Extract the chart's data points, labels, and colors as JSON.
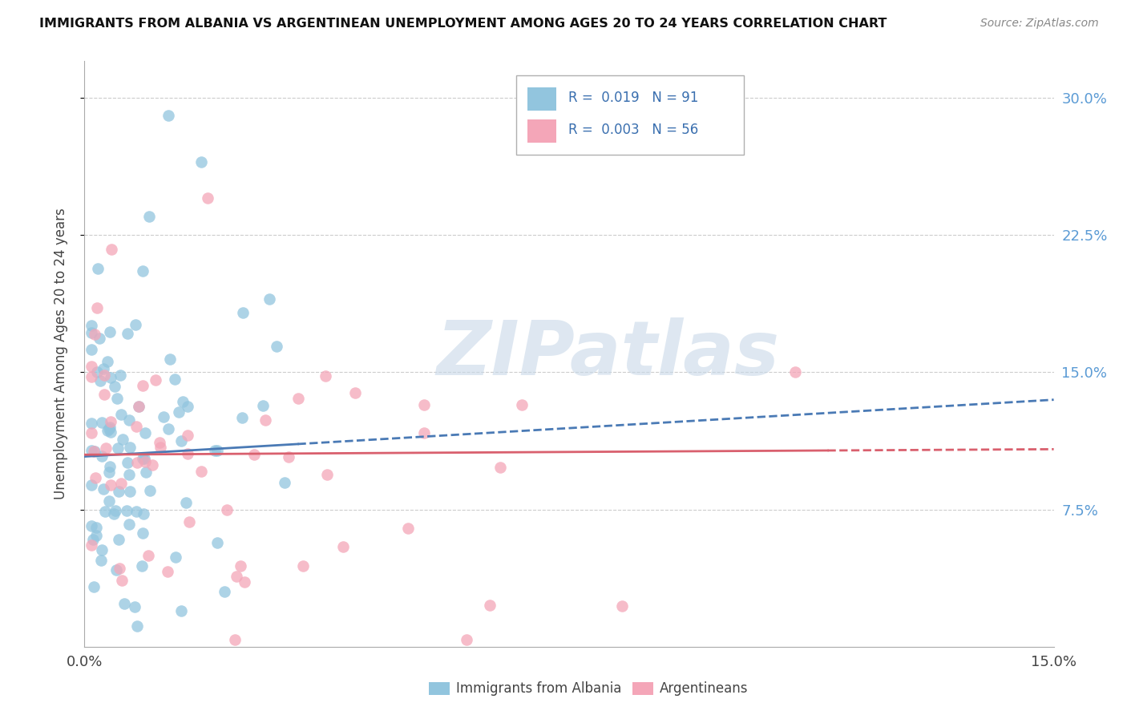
{
  "title": "IMMIGRANTS FROM ALBANIA VS ARGENTINEAN UNEMPLOYMENT AMONG AGES 20 TO 24 YEARS CORRELATION CHART",
  "source": "Source: ZipAtlas.com",
  "ylabel": "Unemployment Among Ages 20 to 24 years",
  "legend1_label": "Immigrants from Albania",
  "legend2_label": "Argentineans",
  "R1": "0.019",
  "N1": "91",
  "R2": "0.003",
  "N2": "56",
  "color_blue": "#92c5de",
  "color_pink": "#f4a6b8",
  "line_blue": "#4a7ab5",
  "line_pink": "#d9606e",
  "xlim": [
    0.0,
    0.15
  ],
  "ylim": [
    0.0,
    0.32
  ],
  "yticks": [
    0.075,
    0.15,
    0.225,
    0.3
  ],
  "ytick_labels": [
    "7.5%",
    "15.0%",
    "22.5%",
    "30.0%"
  ],
  "watermark_text": "ZIPatlas",
  "watermark_color": "#c8d8e8"
}
